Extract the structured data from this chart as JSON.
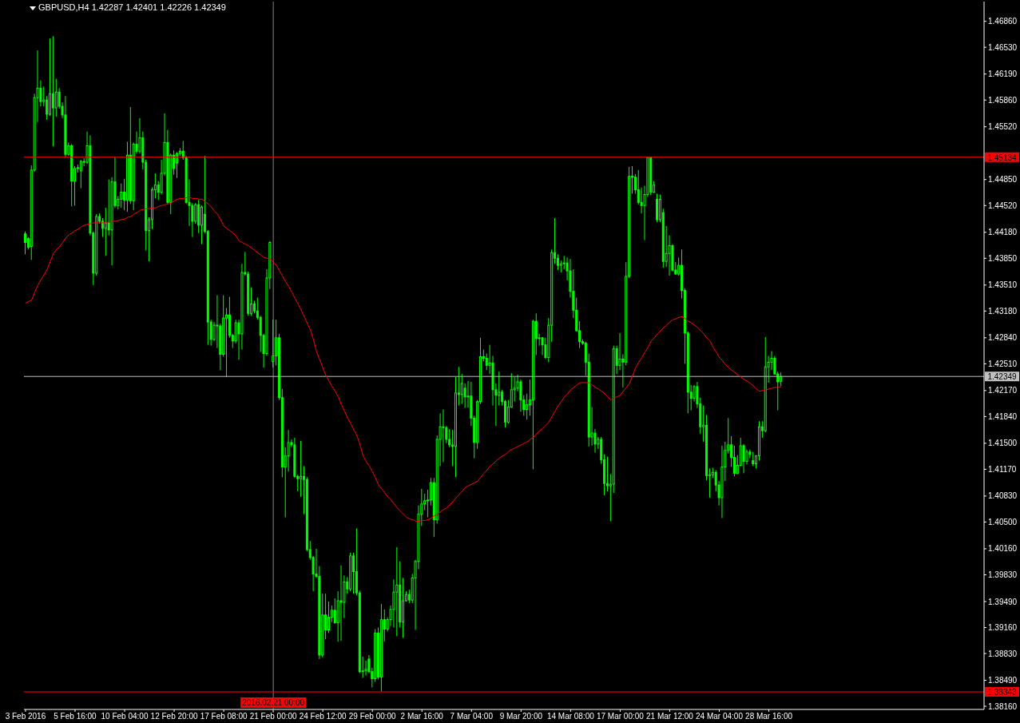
{
  "chart_data": {
    "type": "candlestick",
    "title": "GBPUSD,H4 1.42287 1.42401 1.42226 1.42349",
    "color": "#00ff00",
    "categories": [
      "3 Feb 2016",
      null,
      null,
      null,
      null,
      null,
      null,
      null,
      null,
      null,
      null,
      null,
      null,
      null,
      null,
      null,
      "5 Feb 16:00",
      null,
      null,
      null,
      null,
      null,
      null,
      null,
      null,
      null,
      null,
      null,
      null,
      null,
      null,
      null,
      "10 Feb 04:00",
      null,
      null,
      null,
      null,
      null,
      null,
      null,
      null,
      null,
      null,
      null,
      null,
      null,
      null,
      null,
      "12 Feb 20:00",
      null,
      null,
      null,
      null,
      null,
      null,
      null,
      null,
      null,
      null,
      null,
      null,
      null,
      null,
      null,
      "17 Feb 08:00",
      null,
      null,
      null,
      null,
      null,
      null,
      null,
      null,
      null,
      null,
      null,
      null,
      null,
      null,
      null,
      "21 Feb 00:00",
      null,
      null,
      null,
      null,
      null,
      null,
      null,
      null,
      null,
      null,
      null,
      null,
      null,
      null,
      null,
      "24 Feb 12:00",
      null,
      null,
      null,
      null,
      null,
      null,
      null,
      null,
      null,
      null,
      null,
      null,
      null,
      null,
      null,
      "29 Feb 00:00",
      null,
      null,
      null,
      null,
      null,
      null,
      null,
      null,
      null,
      null,
      null,
      null,
      null,
      null,
      null,
      "2 Mar 16:00",
      null,
      null,
      null,
      null,
      null,
      null,
      null,
      null,
      null,
      null,
      null,
      null,
      null,
      null,
      null,
      "7 Mar 04:00",
      null,
      null,
      null,
      null,
      null,
      null,
      null,
      null,
      null,
      null,
      null,
      null,
      null,
      null,
      null,
      "9 Mar 20:00",
      null,
      null,
      null,
      null,
      null,
      null,
      null,
      null,
      null,
      null,
      null,
      null,
      null,
      null,
      null,
      "14 Mar 08:00",
      null,
      null,
      null,
      null,
      null,
      null,
      null,
      null,
      null,
      null,
      null,
      null,
      null,
      null,
      null,
      "17 Mar 00:00",
      null,
      null,
      null,
      null,
      null,
      null,
      null,
      null,
      null,
      null,
      null,
      null,
      null,
      null,
      null,
      "21 Mar 12:00",
      null,
      null,
      null,
      null,
      null,
      null,
      null,
      null,
      null,
      null,
      null,
      null,
      null,
      null,
      null,
      "24 Mar 04:00",
      null,
      null,
      null,
      null,
      null,
      null,
      null,
      null,
      null,
      null,
      null,
      null,
      null,
      null,
      null,
      "28 Mar 16:00",
      null,
      null,
      null,
      null
    ],
    "ohlc": [
      [
        1.4416,
        1.4419,
        1.439,
        1.4405
      ],
      [
        1.441,
        1.4412,
        1.4396,
        1.4399
      ],
      [
        1.44,
        1.4503,
        1.4383,
        1.4497
      ],
      [
        1.4497,
        1.4594,
        1.4495,
        1.4589
      ],
      [
        1.4589,
        1.4649,
        1.4558,
        1.4601
      ],
      [
        1.4601,
        1.4611,
        1.4578,
        1.4584
      ],
      [
        1.4584,
        1.4603,
        1.4578,
        1.4586
      ],
      [
        1.4586,
        1.4591,
        1.4561,
        1.4568
      ],
      [
        1.4568,
        1.4664,
        1.4566,
        1.4594
      ],
      [
        1.4594,
        1.4667,
        1.4527,
        1.4576
      ],
      [
        1.4576,
        1.4613,
        1.4565,
        1.4596
      ],
      [
        1.4596,
        1.4601,
        1.4575,
        1.4578
      ],
      [
        1.4578,
        1.4583,
        1.4563,
        1.4567
      ],
      [
        1.4567,
        1.4591,
        1.4514,
        1.4517
      ],
      [
        1.4517,
        1.4532,
        1.4515,
        1.4528
      ],
      [
        1.4528,
        1.453,
        1.4451,
        1.4483
      ],
      [
        1.4483,
        1.4502,
        1.4452,
        1.4499
      ],
      [
        1.4499,
        1.4504,
        1.4494,
        1.45
      ],
      [
        1.4496,
        1.451,
        1.4474,
        1.4508
      ],
      [
        1.4508,
        1.4512,
        1.4502,
        1.4507
      ],
      [
        1.4507,
        1.4546,
        1.4505,
        1.4528
      ],
      [
        1.4528,
        1.4541,
        1.4414,
        1.4417
      ],
      [
        1.4417,
        1.4419,
        1.4351,
        1.4366
      ],
      [
        1.4366,
        1.4441,
        1.4363,
        1.4438
      ],
      [
        1.4438,
        1.4442,
        1.4429,
        1.4432
      ],
      [
        1.4432,
        1.4436,
        1.4412,
        1.4423
      ],
      [
        1.4423,
        1.4449,
        1.4388,
        1.443
      ],
      [
        1.443,
        1.4485,
        1.4414,
        1.4421
      ],
      [
        1.4421,
        1.4488,
        1.4376,
        1.4482
      ],
      [
        1.4482,
        1.4513,
        1.4449,
        1.4452
      ],
      [
        1.4452,
        1.4464,
        1.4447,
        1.446
      ],
      [
        1.446,
        1.448,
        1.4449,
        1.4469
      ],
      [
        1.4469,
        1.4486,
        1.4446,
        1.4459
      ],
      [
        1.4459,
        1.4533,
        1.4444,
        1.4516
      ],
      [
        1.4516,
        1.4577,
        1.4454,
        1.4458
      ],
      [
        1.4458,
        1.4532,
        1.4446,
        1.453
      ],
      [
        1.453,
        1.4546,
        1.4518,
        1.4521
      ],
      [
        1.4521,
        1.4563,
        1.4518,
        1.4538
      ],
      [
        1.4538,
        1.4546,
        1.4498,
        1.4507
      ],
      [
        1.4507,
        1.451,
        1.4395,
        1.442
      ],
      [
        1.442,
        1.4437,
        1.4381,
        1.4434
      ],
      [
        1.4434,
        1.4475,
        1.4422,
        1.4472
      ],
      [
        1.4472,
        1.4493,
        1.4461,
        1.4478
      ],
      [
        1.4478,
        1.4483,
        1.4459,
        1.4469
      ],
      [
        1.4469,
        1.451,
        1.4466,
        1.4493
      ],
      [
        1.4493,
        1.4569,
        1.449,
        1.4532
      ],
      [
        1.4532,
        1.4548,
        1.4454,
        1.4456
      ],
      [
        1.4456,
        1.4518,
        1.4441,
        1.4516
      ],
      [
        1.4516,
        1.4522,
        1.4491,
        1.4499
      ],
      [
        1.4506,
        1.452,
        1.4487,
        1.4518
      ],
      [
        1.4518,
        1.4525,
        1.4515,
        1.4521
      ],
      [
        1.4521,
        1.4534,
        1.451,
        1.4513
      ],
      [
        1.4513,
        1.4515,
        1.4454,
        1.4456
      ],
      [
        1.4456,
        1.4485,
        1.4426,
        1.4452
      ],
      [
        1.4452,
        1.4455,
        1.4412,
        1.4432
      ],
      [
        1.4432,
        1.4455,
        1.4429,
        1.4453
      ],
      [
        1.4453,
        1.4459,
        1.4417,
        1.4427
      ],
      [
        1.4427,
        1.4452,
        1.4403,
        1.445
      ],
      [
        1.4441,
        1.4515,
        1.4417,
        1.4419
      ],
      [
        1.4419,
        1.4421,
        1.4275,
        1.4304
      ],
      [
        1.4304,
        1.4307,
        1.4274,
        1.4282
      ],
      [
        1.4282,
        1.4304,
        1.428,
        1.43
      ],
      [
        1.43,
        1.4338,
        1.4271,
        1.4299
      ],
      [
        1.4299,
        1.4302,
        1.4243,
        1.4263
      ],
      [
        1.4263,
        1.4338,
        1.426,
        1.4309
      ],
      [
        1.4309,
        1.4322,
        1.4234,
        1.4313
      ],
      [
        1.4313,
        1.4336,
        1.4284,
        1.4287
      ],
      [
        1.4287,
        1.4289,
        1.4271,
        1.428
      ],
      [
        1.428,
        1.4307,
        1.4277,
        1.4303
      ],
      [
        1.4303,
        1.4307,
        1.4256,
        1.4289
      ],
      [
        1.4289,
        1.4378,
        1.4269,
        1.4367
      ],
      [
        1.4367,
        1.4393,
        1.4363,
        1.4365
      ],
      [
        1.4365,
        1.4368,
        1.4312,
        1.4315
      ],
      [
        1.4315,
        1.4348,
        1.4312,
        1.4327
      ],
      [
        1.4327,
        1.4331,
        1.4315,
        1.4318
      ],
      [
        1.4318,
        1.4335,
        1.4307,
        1.431
      ],
      [
        1.431,
        1.4312,
        1.4266,
        1.4287
      ],
      [
        1.4287,
        1.4289,
        1.4246,
        1.4264
      ],
      [
        1.4264,
        1.4371,
        1.4261,
        1.436
      ],
      [
        1.436,
        1.4407,
        1.4346,
        1.4405
      ],
      [
        1.4254,
        1.4307,
        1.4246,
        1.4261
      ],
      [
        1.4261,
        1.4307,
        1.4249,
        1.4284
      ],
      [
        1.4284,
        1.4289,
        1.4205,
        1.4208
      ],
      [
        1.4208,
        1.4219,
        1.4107,
        1.412
      ],
      [
        1.412,
        1.4145,
        1.4056,
        1.4134
      ],
      [
        1.4134,
        1.4167,
        1.4114,
        1.4151
      ],
      [
        1.4151,
        1.4155,
        1.4145,
        1.4148
      ],
      [
        1.4148,
        1.4157,
        1.4106,
        1.4108
      ],
      [
        1.4108,
        1.411,
        1.4089,
        1.4105
      ],
      [
        1.4105,
        1.4153,
        1.4082,
        1.4108
      ],
      [
        1.4108,
        1.4121,
        1.406,
        1.4104
      ],
      [
        1.4104,
        1.4107,
        1.4013,
        1.4015
      ],
      [
        1.4015,
        1.4026,
        1.4002,
        1.4005
      ],
      [
        1.4005,
        1.4007,
        1.3962,
        1.3984
      ],
      [
        1.3984,
        1.4016,
        1.3979,
        1.3981
      ],
      [
        1.3981,
        1.3994,
        1.3876,
        1.3881
      ],
      [
        1.3881,
        1.3959,
        1.3878,
        1.3932
      ],
      [
        1.3932,
        1.3959,
        1.3901,
        1.3913
      ],
      [
        1.3913,
        1.3949,
        1.3909,
        1.3929
      ],
      [
        1.3929,
        1.3944,
        1.3923,
        1.3938
      ],
      [
        1.3938,
        1.3953,
        1.3921,
        1.3922
      ],
      [
        1.3922,
        1.3962,
        1.3898,
        1.395
      ],
      [
        1.395,
        1.3995,
        1.3899,
        1.3948
      ],
      [
        1.3948,
        1.3982,
        1.3928,
        1.3974
      ],
      [
        1.3974,
        1.398,
        1.3959,
        1.3965
      ],
      [
        1.3965,
        1.4011,
        1.3962,
        1.4007
      ],
      [
        1.4007,
        1.4011,
        1.3959,
        1.3987
      ],
      [
        1.3987,
        1.4042,
        1.3957,
        1.396
      ],
      [
        1.396,
        1.3963,
        1.3858,
        1.386
      ],
      [
        1.386,
        1.3879,
        1.3852,
        1.3861
      ],
      [
        1.3861,
        1.3874,
        1.3855,
        1.3863
      ],
      [
        1.3876,
        1.3881,
        1.3858,
        1.386
      ],
      [
        1.386,
        1.3865,
        1.384,
        1.3851
      ],
      [
        1.3851,
        1.3914,
        1.3847,
        1.3909
      ],
      [
        1.3909,
        1.3916,
        1.385,
        1.3853
      ],
      [
        1.3853,
        1.3946,
        1.3835,
        1.3926
      ],
      [
        1.3926,
        1.3939,
        1.3898,
        1.3914
      ],
      [
        1.3914,
        1.3929,
        1.3911,
        1.3926
      ],
      [
        1.3926,
        1.3944,
        1.3918,
        1.3939
      ],
      [
        1.3939,
        1.3977,
        1.3916,
        1.3961
      ],
      [
        1.3961,
        1.4018,
        1.3905,
        1.397
      ],
      [
        1.397,
        1.4,
        1.3916,
        1.3923
      ],
      [
        1.3923,
        1.3979,
        1.3903,
        1.395
      ],
      [
        1.395,
        1.3962,
        1.3949,
        1.3958
      ],
      [
        1.3958,
        1.3964,
        1.3947,
        1.3951
      ],
      [
        1.3951,
        1.3984,
        1.3947,
        1.3979
      ],
      [
        1.3979,
        1.4002,
        1.3913,
        1.4
      ],
      [
        1.4,
        1.4071,
        1.399,
        1.406
      ],
      [
        1.406,
        1.4092,
        1.4045,
        1.4073
      ],
      [
        1.4073,
        1.4086,
        1.4065,
        1.4077
      ],
      [
        1.4077,
        1.4091,
        1.4056,
        1.4078
      ],
      [
        1.4078,
        1.4106,
        1.4071,
        1.41
      ],
      [
        1.41,
        1.4106,
        1.4031,
        1.4053
      ],
      [
        1.4053,
        1.416,
        1.4048,
        1.4155
      ],
      [
        1.4155,
        1.4188,
        1.4121,
        1.4171
      ],
      [
        1.4171,
        1.4193,
        1.4126,
        1.417
      ],
      [
        1.417,
        1.4172,
        1.415,
        1.4155
      ],
      [
        1.4155,
        1.4168,
        1.4145,
        1.4148
      ],
      [
        1.4148,
        1.4167,
        1.4121,
        1.4146
      ],
      [
        1.4146,
        1.4234,
        1.4107,
        1.4214
      ],
      [
        1.4214,
        1.4247,
        1.4198,
        1.4212
      ],
      [
        1.4212,
        1.4238,
        1.42,
        1.4226
      ],
      [
        1.422,
        1.4226,
        1.4195,
        1.4209
      ],
      [
        1.4209,
        1.4229,
        1.4195,
        1.421
      ],
      [
        1.421,
        1.4228,
        1.4172,
        1.4182
      ],
      [
        1.4182,
        1.4185,
        1.4131,
        1.4151
      ],
      [
        1.4151,
        1.4205,
        1.4143,
        1.4203
      ],
      [
        1.4203,
        1.4284,
        1.42,
        1.426
      ],
      [
        1.426,
        1.4269,
        1.4254,
        1.4258
      ],
      [
        1.4258,
        1.4264,
        1.4243,
        1.4249
      ],
      [
        1.4249,
        1.4275,
        1.4238,
        1.4252
      ],
      [
        1.4252,
        1.4261,
        1.4198,
        1.4218
      ],
      [
        1.4218,
        1.4226,
        1.4172,
        1.4211
      ],
      [
        1.4211,
        1.4241,
        1.4198,
        1.4215
      ],
      [
        1.4215,
        1.4218,
        1.4198,
        1.4203
      ],
      [
        1.4203,
        1.4205,
        1.417,
        1.4177
      ],
      [
        1.4177,
        1.4205,
        1.4175,
        1.4196
      ],
      [
        1.4196,
        1.4239,
        1.4195,
        1.4218
      ],
      [
        1.4218,
        1.4234,
        1.4203,
        1.422
      ],
      [
        1.422,
        1.4237,
        1.4216,
        1.4228
      ],
      [
        1.4228,
        1.4231,
        1.419,
        1.4205
      ],
      [
        1.4205,
        1.4211,
        1.4185,
        1.4193
      ],
      [
        1.4193,
        1.4213,
        1.418,
        1.4199
      ],
      [
        1.4199,
        1.4231,
        1.4185,
        1.4205
      ],
      [
        1.4205,
        1.4307,
        1.4117,
        1.4305
      ],
      [
        1.4305,
        1.4315,
        1.4262,
        1.4283
      ],
      [
        1.4283,
        1.4289,
        1.4274,
        1.4284
      ],
      [
        1.4284,
        1.4285,
        1.4262,
        1.4275
      ],
      [
        1.4275,
        1.4284,
        1.4257,
        1.4259
      ],
      [
        1.4259,
        1.4309,
        1.4253,
        1.43
      ],
      [
        1.43,
        1.4396,
        1.4279,
        1.4392
      ],
      [
        1.4392,
        1.4436,
        1.4378,
        1.4385
      ],
      [
        1.4385,
        1.439,
        1.437,
        1.4376
      ],
      [
        1.4376,
        1.4382,
        1.4367,
        1.4378
      ],
      [
        1.4378,
        1.4388,
        1.4371,
        1.4379
      ],
      [
        1.4379,
        1.4386,
        1.4357,
        1.4369
      ],
      [
        1.4369,
        1.4384,
        1.4335,
        1.4343
      ],
      [
        1.4343,
        1.4371,
        1.4309,
        1.4319
      ],
      [
        1.4319,
        1.4335,
        1.4292,
        1.4293
      ],
      [
        1.4293,
        1.4305,
        1.4271,
        1.4279
      ],
      [
        1.4279,
        1.4282,
        1.4275,
        1.4277
      ],
      [
        1.4277,
        1.4279,
        1.4236,
        1.4253
      ],
      [
        1.4253,
        1.4264,
        1.4146,
        1.4158
      ],
      [
        1.4158,
        1.4196,
        1.4147,
        1.4163
      ],
      [
        1.4163,
        1.4168,
        1.4138,
        1.4149
      ],
      [
        1.4149,
        1.4158,
        1.4143,
        1.4155
      ],
      [
        1.4155,
        1.4158,
        1.4124,
        1.4129
      ],
      [
        1.4129,
        1.4136,
        1.4084,
        1.4099
      ],
      [
        1.4099,
        1.4133,
        1.4089,
        1.4096
      ],
      [
        1.4096,
        1.4111,
        1.4051,
        1.4098
      ],
      [
        1.4098,
        1.4274,
        1.4087,
        1.427
      ],
      [
        1.427,
        1.4274,
        1.4238,
        1.4249
      ],
      [
        1.4249,
        1.429,
        1.4243,
        1.4257
      ],
      [
        1.4257,
        1.4263,
        1.4221,
        1.4253
      ],
      [
        1.4253,
        1.438,
        1.4249,
        1.4362
      ],
      [
        1.4362,
        1.4501,
        1.436,
        1.4489
      ],
      [
        1.4489,
        1.4502,
        1.4467,
        1.4488
      ],
      [
        1.4488,
        1.4492,
        1.4467,
        1.4472
      ],
      [
        1.4472,
        1.4497,
        1.4453,
        1.4456
      ],
      [
        1.4456,
        1.4475,
        1.4442,
        1.4452
      ],
      [
        1.4452,
        1.4477,
        1.4408,
        1.4466
      ],
      [
        1.4466,
        1.4513,
        1.4463,
        1.4513
      ],
      [
        1.4513,
        1.4514,
        1.4465,
        1.4469
      ],
      [
        1.4469,
        1.4483,
        1.4468,
        1.4478
      ],
      [
        1.446,
        1.4467,
        1.4431,
        1.4434
      ],
      [
        1.4434,
        1.4466,
        1.4431,
        1.446
      ],
      [
        1.4443,
        1.4448,
        1.4373,
        1.4381
      ],
      [
        1.4381,
        1.4426,
        1.4374,
        1.4391
      ],
      [
        1.4391,
        1.4414,
        1.4363,
        1.4401
      ],
      [
        1.4401,
        1.4403,
        1.4368,
        1.437
      ],
      [
        1.437,
        1.438,
        1.4364,
        1.4365
      ],
      [
        1.4365,
        1.4386,
        1.4363,
        1.4376
      ],
      [
        1.4376,
        1.4396,
        1.4334,
        1.4344
      ],
      [
        1.4344,
        1.4347,
        1.4251,
        1.429
      ],
      [
        1.429,
        1.4292,
        1.4188,
        1.4215
      ],
      [
        1.4215,
        1.4224,
        1.4192,
        1.4207
      ],
      [
        1.4207,
        1.4224,
        1.4203,
        1.4222
      ],
      [
        1.4222,
        1.4228,
        1.4195,
        1.42
      ],
      [
        1.42,
        1.4208,
        1.4162,
        1.4171
      ],
      [
        1.4171,
        1.4198,
        1.4152,
        1.4173
      ],
      [
        1.4173,
        1.4186,
        1.4103,
        1.4109
      ],
      [
        1.4109,
        1.4118,
        1.4081,
        1.411
      ],
      [
        1.411,
        1.4119,
        1.4106,
        1.4113
      ],
      [
        1.4113,
        1.4116,
        1.4089,
        1.4097
      ],
      [
        1.4097,
        1.4102,
        1.4071,
        1.4081
      ],
      [
        1.4081,
        1.4147,
        1.4055,
        1.412
      ],
      [
        1.412,
        1.4152,
        1.4102,
        1.4141
      ],
      [
        1.4141,
        1.4182,
        1.4137,
        1.4148
      ],
      [
        1.4148,
        1.4159,
        1.412,
        1.4132
      ],
      [
        1.4132,
        1.4147,
        1.4108,
        1.4112
      ],
      [
        1.4112,
        1.4135,
        1.4111,
        1.4122
      ],
      [
        1.4122,
        1.4157,
        1.4121,
        1.4147
      ],
      [
        1.4147,
        1.4149,
        1.4112,
        1.4127
      ],
      [
        1.4127,
        1.4142,
        1.4123,
        1.4139
      ],
      [
        1.4139,
        1.4142,
        1.4131,
        1.4136
      ],
      [
        1.4128,
        1.4139,
        1.4121,
        1.4124
      ],
      [
        1.4124,
        1.4135,
        1.4118,
        1.4134
      ],
      [
        1.4134,
        1.4178,
        1.4128,
        1.4171
      ],
      [
        1.4171,
        1.4178,
        1.4157,
        1.4166
      ],
      [
        1.4166,
        1.4285,
        1.4164,
        1.4247
      ],
      [
        1.4247,
        1.4261,
        1.4227,
        1.4253
      ],
      [
        1.4253,
        1.4267,
        1.4243,
        1.4258
      ],
      [
        1.4258,
        1.4261,
        1.4237,
        1.4238
      ],
      [
        1.4238,
        1.4241,
        1.4192,
        1.4228
      ],
      [
        1.42287,
        1.42401,
        1.42226,
        1.42349
      ]
    ],
    "series": [
      {
        "type": "line",
        "color": "#ff0000",
        "values": [
          1.4328,
          1.433,
          1.4332,
          1.4342,
          1.4351,
          1.4358,
          1.4364,
          1.4371,
          1.4381,
          1.4391,
          1.4396,
          1.44,
          1.4405,
          1.4411,
          1.4415,
          1.4417,
          1.442,
          1.4422,
          1.4425,
          1.4427,
          1.4428,
          1.4429,
          1.443,
          1.443,
          1.443,
          1.443,
          1.4431,
          1.4431,
          1.4432,
          1.4432,
          1.4433,
          1.4434,
          1.4435,
          1.4437,
          1.4438,
          1.4441,
          1.4443,
          1.4446,
          1.4447,
          1.4448,
          1.4448,
          1.4449,
          1.4449,
          1.4451,
          1.4452,
          1.4453,
          1.4454,
          1.4455,
          1.4458,
          1.446,
          1.4461,
          1.4461,
          1.4462,
          1.4462,
          1.4461,
          1.4461,
          1.446,
          1.446,
          1.4457,
          1.4454,
          1.445,
          1.4445,
          1.4441,
          1.4434,
          1.4426,
          1.4423,
          1.442,
          1.4417,
          1.4413,
          1.4407,
          1.4405,
          1.4403,
          1.4401,
          1.4398,
          1.4395,
          1.4392,
          1.4389,
          1.4386,
          1.4385,
          1.4384,
          1.438,
          1.4376,
          1.4369,
          1.4362,
          1.4355,
          1.4349,
          1.4342,
          1.4334,
          1.4327,
          1.4319,
          1.4311,
          1.4302,
          1.4294,
          1.4281,
          1.4266,
          1.4256,
          1.4246,
          1.4236,
          1.4229,
          1.4222,
          1.4216,
          1.4209,
          1.4199,
          1.4191,
          1.4182,
          1.4175,
          1.4167,
          1.416,
          1.4148,
          1.4134,
          1.4127,
          1.4121,
          1.4114,
          1.4106,
          1.4097,
          1.4092,
          1.4087,
          1.4082,
          1.4078,
          1.4073,
          1.4068,
          1.4064,
          1.406,
          1.4056,
          1.4054,
          1.4053,
          1.4051,
          1.4051,
          1.4052,
          1.4052,
          1.4053,
          1.4055,
          1.4058,
          1.406,
          1.4063,
          1.4066,
          1.4068,
          1.4072,
          1.4076,
          1.4081,
          1.4085,
          1.4089,
          1.4094,
          1.4096,
          1.4098,
          1.41,
          1.4102,
          1.4107,
          1.4112,
          1.4116,
          1.4121,
          1.4124,
          1.4128,
          1.4131,
          1.4134,
          1.4136,
          1.414,
          1.4142,
          1.4144,
          1.4146,
          1.4148,
          1.415,
          1.4152,
          1.4155,
          1.4158,
          1.4162,
          1.4166,
          1.4169,
          1.4173,
          1.4177,
          1.4184,
          1.4191,
          1.4198,
          1.4203,
          1.4209,
          1.4213,
          1.4218,
          1.4221,
          1.4224,
          1.4227,
          1.4227,
          1.4227,
          1.4227,
          1.4224,
          1.4221,
          1.4219,
          1.4216,
          1.4213,
          1.4209,
          1.4205,
          1.4208,
          1.4209,
          1.4211,
          1.4216,
          1.4221,
          1.4226,
          1.4236,
          1.4246,
          1.4253,
          1.4259,
          1.4266,
          1.4272,
          1.428,
          1.4284,
          1.4289,
          1.4293,
          1.4297,
          1.43,
          1.4304,
          1.4307,
          1.4308,
          1.431,
          1.4311,
          1.4308,
          1.4305,
          1.4303,
          1.43,
          1.4297,
          1.4293,
          1.4289,
          1.4284,
          1.428,
          1.4272,
          1.4266,
          1.4259,
          1.4255,
          1.425,
          1.4246,
          1.4243,
          1.424,
          1.4237,
          1.4234,
          1.4231,
          1.4229,
          1.4226,
          1.4223,
          1.4219,
          1.4216,
          1.4217,
          1.4218,
          1.4219,
          1.422,
          1.4221,
          1.4221,
          1.4222
        ]
      }
    ],
    "ylim": [
      1.3812,
      1.4711
    ],
    "yticks": [
      {
        "value": 1.4686,
        "label": "1.46860"
      },
      {
        "value": 1.4653,
        "label": "1.46530"
      },
      {
        "value": 1.4619,
        "label": "1.46190"
      },
      {
        "value": 1.4586,
        "label": "1.45860"
      },
      {
        "value": 1.4552,
        "label": "1.45520"
      },
      {
        "value": 1.4485,
        "label": "1.44850"
      },
      {
        "value": 1.4452,
        "label": "1.44520"
      },
      {
        "value": 1.4418,
        "label": "1.44180"
      },
      {
        "value": 1.4385,
        "label": "1.43850"
      },
      {
        "value": 1.4351,
        "label": "1.43510"
      },
      {
        "value": 1.4318,
        "label": "1.43180"
      },
      {
        "value": 1.4284,
        "label": "1.42840"
      },
      {
        "value": 1.4251,
        "label": "1.42510"
      },
      {
        "value": 1.4217,
        "label": "1.42170"
      },
      {
        "value": 1.4184,
        "label": "1.41840"
      },
      {
        "value": 1.415,
        "label": "1.41500"
      },
      {
        "value": 1.4117,
        "label": "1.41170"
      },
      {
        "value": 1.4083,
        "label": "1.40830"
      },
      {
        "value": 1.405,
        "label": "1.40500"
      },
      {
        "value": 1.4016,
        "label": "1.40160"
      },
      {
        "value": 1.3983,
        "label": "1.39830"
      },
      {
        "value": 1.3949,
        "label": "1.39490"
      },
      {
        "value": 1.3916,
        "label": "1.39160"
      },
      {
        "value": 1.3883,
        "label": "1.38830"
      },
      {
        "value": 1.3849,
        "label": "1.38490"
      },
      {
        "value": 1.3816,
        "label": "1.38160"
      }
    ],
    "ref_lines": [
      {
        "axis": "y",
        "value": 1.45134,
        "label": "1.45134",
        "color": "#ff0000"
      },
      {
        "axis": "y",
        "value": 1.38343,
        "label": "1.38343",
        "color": "#ff0000"
      },
      {
        "axis": "y",
        "value": 1.42349,
        "label": "1.42349",
        "color": "#c0c0c0"
      },
      {
        "axis": "x",
        "value": "21 Feb 00:00",
        "label": "2016.02.21 00:00",
        "color": "#808080"
      }
    ],
    "grid": false
  }
}
